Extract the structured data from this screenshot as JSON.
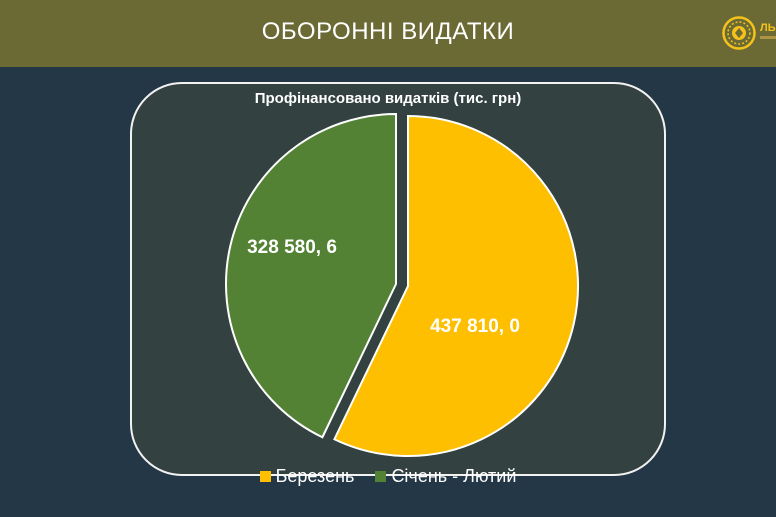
{
  "header": {
    "title": "ОБОРОННІ ВИДАТКИ",
    "logo_text": "ЛЬ"
  },
  "colors": {
    "header_bg": "#6b6a35",
    "page_bg": "#243746",
    "panel_bg": "#344141",
    "march": "#fdbf00",
    "jan_feb": "#548235"
  },
  "chart_data": {
    "type": "pie",
    "title": "Профінансовано видатків (тис. грн)",
    "slices": [
      {
        "label": "Березень",
        "value": 437810.0,
        "data_label": "437 810, 0",
        "color": "#fdbf00"
      },
      {
        "label": "Січень - Лютий",
        "value": 328580.6,
        "data_label": "328 580, 6",
        "color": "#548235"
      }
    ],
    "legend": {
      "position": "bottom",
      "items": [
        "Березень",
        "Січень - Лютий"
      ]
    }
  }
}
